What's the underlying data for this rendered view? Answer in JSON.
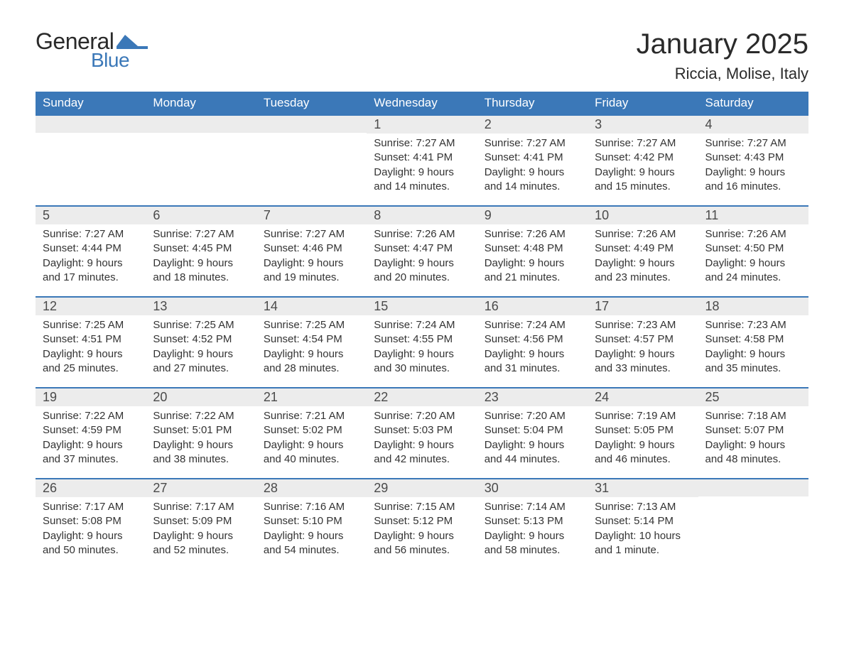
{
  "brand": {
    "word1": "General",
    "word2": "Blue",
    "text_color": "#2a2a2a",
    "accent_color": "#3b78b8"
  },
  "title": "January 2025",
  "location": "Riccia, Molise, Italy",
  "headers": [
    "Sunday",
    "Monday",
    "Tuesday",
    "Wednesday",
    "Thursday",
    "Friday",
    "Saturday"
  ],
  "colors": {
    "header_bg": "#3b78b8",
    "header_text": "#ffffff",
    "daynum_bg": "#ececec",
    "border_top": "#3b78b8",
    "body_text": "#333333"
  },
  "weeks": [
    [
      null,
      null,
      null,
      {
        "n": "1",
        "sunrise": "Sunrise: 7:27 AM",
        "sunset": "Sunset: 4:41 PM",
        "dl1": "Daylight: 9 hours",
        "dl2": "and 14 minutes."
      },
      {
        "n": "2",
        "sunrise": "Sunrise: 7:27 AM",
        "sunset": "Sunset: 4:41 PM",
        "dl1": "Daylight: 9 hours",
        "dl2": "and 14 minutes."
      },
      {
        "n": "3",
        "sunrise": "Sunrise: 7:27 AM",
        "sunset": "Sunset: 4:42 PM",
        "dl1": "Daylight: 9 hours",
        "dl2": "and 15 minutes."
      },
      {
        "n": "4",
        "sunrise": "Sunrise: 7:27 AM",
        "sunset": "Sunset: 4:43 PM",
        "dl1": "Daylight: 9 hours",
        "dl2": "and 16 minutes."
      }
    ],
    [
      {
        "n": "5",
        "sunrise": "Sunrise: 7:27 AM",
        "sunset": "Sunset: 4:44 PM",
        "dl1": "Daylight: 9 hours",
        "dl2": "and 17 minutes."
      },
      {
        "n": "6",
        "sunrise": "Sunrise: 7:27 AM",
        "sunset": "Sunset: 4:45 PM",
        "dl1": "Daylight: 9 hours",
        "dl2": "and 18 minutes."
      },
      {
        "n": "7",
        "sunrise": "Sunrise: 7:27 AM",
        "sunset": "Sunset: 4:46 PM",
        "dl1": "Daylight: 9 hours",
        "dl2": "and 19 minutes."
      },
      {
        "n": "8",
        "sunrise": "Sunrise: 7:26 AM",
        "sunset": "Sunset: 4:47 PM",
        "dl1": "Daylight: 9 hours",
        "dl2": "and 20 minutes."
      },
      {
        "n": "9",
        "sunrise": "Sunrise: 7:26 AM",
        "sunset": "Sunset: 4:48 PM",
        "dl1": "Daylight: 9 hours",
        "dl2": "and 21 minutes."
      },
      {
        "n": "10",
        "sunrise": "Sunrise: 7:26 AM",
        "sunset": "Sunset: 4:49 PM",
        "dl1": "Daylight: 9 hours",
        "dl2": "and 23 minutes."
      },
      {
        "n": "11",
        "sunrise": "Sunrise: 7:26 AM",
        "sunset": "Sunset: 4:50 PM",
        "dl1": "Daylight: 9 hours",
        "dl2": "and 24 minutes."
      }
    ],
    [
      {
        "n": "12",
        "sunrise": "Sunrise: 7:25 AM",
        "sunset": "Sunset: 4:51 PM",
        "dl1": "Daylight: 9 hours",
        "dl2": "and 25 minutes."
      },
      {
        "n": "13",
        "sunrise": "Sunrise: 7:25 AM",
        "sunset": "Sunset: 4:52 PM",
        "dl1": "Daylight: 9 hours",
        "dl2": "and 27 minutes."
      },
      {
        "n": "14",
        "sunrise": "Sunrise: 7:25 AM",
        "sunset": "Sunset: 4:54 PM",
        "dl1": "Daylight: 9 hours",
        "dl2": "and 28 minutes."
      },
      {
        "n": "15",
        "sunrise": "Sunrise: 7:24 AM",
        "sunset": "Sunset: 4:55 PM",
        "dl1": "Daylight: 9 hours",
        "dl2": "and 30 minutes."
      },
      {
        "n": "16",
        "sunrise": "Sunrise: 7:24 AM",
        "sunset": "Sunset: 4:56 PM",
        "dl1": "Daylight: 9 hours",
        "dl2": "and 31 minutes."
      },
      {
        "n": "17",
        "sunrise": "Sunrise: 7:23 AM",
        "sunset": "Sunset: 4:57 PM",
        "dl1": "Daylight: 9 hours",
        "dl2": "and 33 minutes."
      },
      {
        "n": "18",
        "sunrise": "Sunrise: 7:23 AM",
        "sunset": "Sunset: 4:58 PM",
        "dl1": "Daylight: 9 hours",
        "dl2": "and 35 minutes."
      }
    ],
    [
      {
        "n": "19",
        "sunrise": "Sunrise: 7:22 AM",
        "sunset": "Sunset: 4:59 PM",
        "dl1": "Daylight: 9 hours",
        "dl2": "and 37 minutes."
      },
      {
        "n": "20",
        "sunrise": "Sunrise: 7:22 AM",
        "sunset": "Sunset: 5:01 PM",
        "dl1": "Daylight: 9 hours",
        "dl2": "and 38 minutes."
      },
      {
        "n": "21",
        "sunrise": "Sunrise: 7:21 AM",
        "sunset": "Sunset: 5:02 PM",
        "dl1": "Daylight: 9 hours",
        "dl2": "and 40 minutes."
      },
      {
        "n": "22",
        "sunrise": "Sunrise: 7:20 AM",
        "sunset": "Sunset: 5:03 PM",
        "dl1": "Daylight: 9 hours",
        "dl2": "and 42 minutes."
      },
      {
        "n": "23",
        "sunrise": "Sunrise: 7:20 AM",
        "sunset": "Sunset: 5:04 PM",
        "dl1": "Daylight: 9 hours",
        "dl2": "and 44 minutes."
      },
      {
        "n": "24",
        "sunrise": "Sunrise: 7:19 AM",
        "sunset": "Sunset: 5:05 PM",
        "dl1": "Daylight: 9 hours",
        "dl2": "and 46 minutes."
      },
      {
        "n": "25",
        "sunrise": "Sunrise: 7:18 AM",
        "sunset": "Sunset: 5:07 PM",
        "dl1": "Daylight: 9 hours",
        "dl2": "and 48 minutes."
      }
    ],
    [
      {
        "n": "26",
        "sunrise": "Sunrise: 7:17 AM",
        "sunset": "Sunset: 5:08 PM",
        "dl1": "Daylight: 9 hours",
        "dl2": "and 50 minutes."
      },
      {
        "n": "27",
        "sunrise": "Sunrise: 7:17 AM",
        "sunset": "Sunset: 5:09 PM",
        "dl1": "Daylight: 9 hours",
        "dl2": "and 52 minutes."
      },
      {
        "n": "28",
        "sunrise": "Sunrise: 7:16 AM",
        "sunset": "Sunset: 5:10 PM",
        "dl1": "Daylight: 9 hours",
        "dl2": "and 54 minutes."
      },
      {
        "n": "29",
        "sunrise": "Sunrise: 7:15 AM",
        "sunset": "Sunset: 5:12 PM",
        "dl1": "Daylight: 9 hours",
        "dl2": "and 56 minutes."
      },
      {
        "n": "30",
        "sunrise": "Sunrise: 7:14 AM",
        "sunset": "Sunset: 5:13 PM",
        "dl1": "Daylight: 9 hours",
        "dl2": "and 58 minutes."
      },
      {
        "n": "31",
        "sunrise": "Sunrise: 7:13 AM",
        "sunset": "Sunset: 5:14 PM",
        "dl1": "Daylight: 10 hours",
        "dl2": "and 1 minute."
      },
      null
    ]
  ]
}
